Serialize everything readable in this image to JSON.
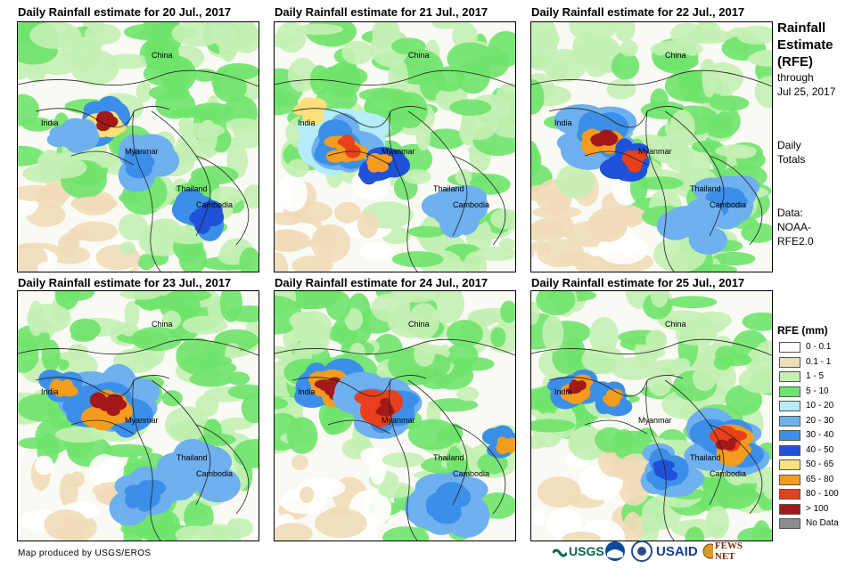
{
  "panels": [
    {
      "title": "Daily Rainfall estimate for 20 Jul., 2017",
      "variant": 0
    },
    {
      "title": "Daily Rainfall estimate for 21 Jul., 2017",
      "variant": 1
    },
    {
      "title": "Daily Rainfall estimate for 22 Jul., 2017",
      "variant": 2
    },
    {
      "title": "Daily Rainfall estimate for 23 Jul., 2017",
      "variant": 3
    },
    {
      "title": "Daily Rainfall estimate for 24 Jul., 2017",
      "variant": 4
    },
    {
      "title": "Daily Rainfall estimate for 25 Jul., 2017",
      "variant": 5
    }
  ],
  "map_labels": {
    "china": "China",
    "india": "India",
    "myanmar": "Myanmar",
    "thailand": "Thailand",
    "cambodia": "Cambodia"
  },
  "sidebar": {
    "title_lines": [
      "Rainfall",
      "Estimate",
      "(RFE)"
    ],
    "through": "through",
    "date": "Jul 25, 2017",
    "daily": "Daily",
    "totals": "Totals",
    "data_label": "Data:",
    "source1": "NOAA-",
    "source2": "RFE2.0"
  },
  "legend": {
    "title": "RFE (mm)",
    "items": [
      {
        "label": "0 - 0.1",
        "color": "#ffffff"
      },
      {
        "label": "0.1 - 1",
        "color": "#efdcb8"
      },
      {
        "label": "1 - 5",
        "color": "#c4f0b4"
      },
      {
        "label": "5 - 10",
        "color": "#6fe36b"
      },
      {
        "label": "10 - 20",
        "color": "#b4ecf7"
      },
      {
        "label": "20 - 30",
        "color": "#6fb0ef"
      },
      {
        "label": "30 - 40",
        "color": "#3c8fe8"
      },
      {
        "label": "40 - 50",
        "color": "#1f52d8"
      },
      {
        "label": "50 - 65",
        "color": "#fbe07c"
      },
      {
        "label": "65 - 80",
        "color": "#f39c1e"
      },
      {
        "label": "80 - 100",
        "color": "#e8401c"
      },
      {
        "label": "> 100",
        "color": "#a31919"
      },
      {
        "label": "No Data",
        "color": "#8c8c8c"
      }
    ]
  },
  "footer": "Map produced by USGS/EROS",
  "logos": {
    "usgs": "USGS",
    "usaid": "USAID",
    "fews": "FEWS NET"
  }
}
